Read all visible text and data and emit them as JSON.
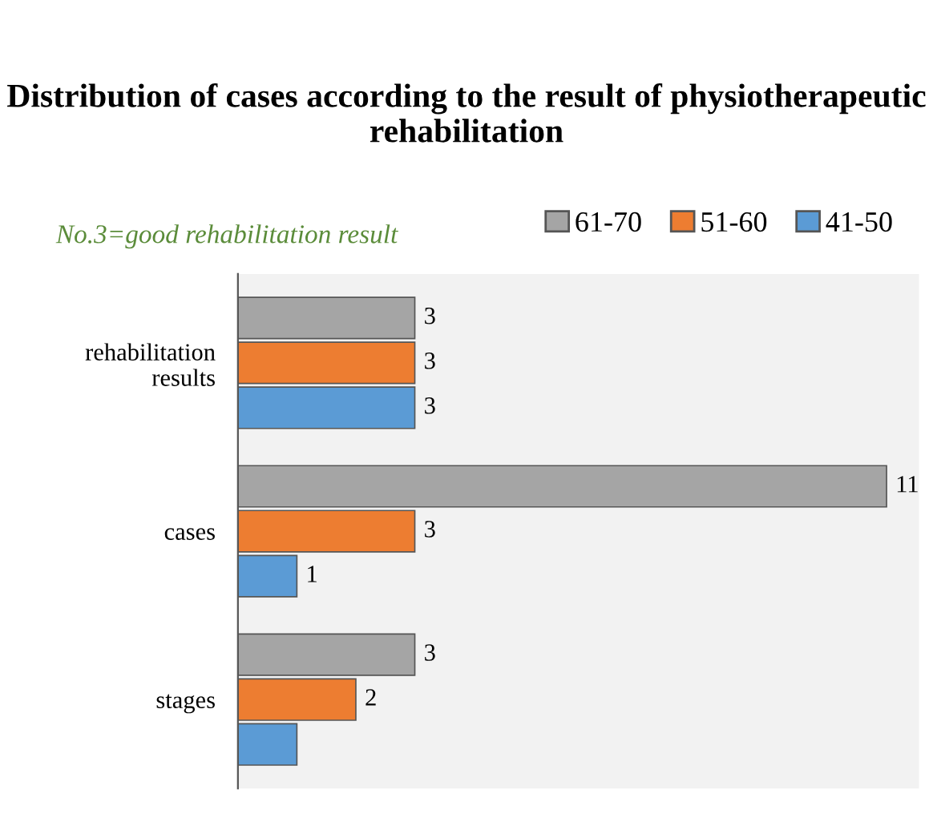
{
  "chart_data": {
    "type": "bar",
    "orientation": "horizontal",
    "title": "Distribution of cases according to the result of physiotherapeutic rehabilitation",
    "categories": [
      "rehabilitation results",
      "cases",
      "stages"
    ],
    "series": [
      {
        "name": "61-70",
        "color": "#a5a5a5",
        "values": [
          3,
          11,
          3
        ],
        "value_labels": [
          "3",
          "11",
          "3"
        ]
      },
      {
        "name": "51-60",
        "color": "#ed7d31",
        "values": [
          3,
          3,
          2
        ],
        "value_labels": [
          "3",
          "3",
          "2"
        ]
      },
      {
        "name": "41-50",
        "color": "#5b9bd5",
        "values": [
          3,
          1,
          1
        ],
        "value_labels": [
          "3",
          "1",
          null
        ]
      }
    ],
    "annotations": [
      "No.3=good rehabilitation result"
    ],
    "legend": "top",
    "grid": false,
    "tick_labels": "y"
  }
}
